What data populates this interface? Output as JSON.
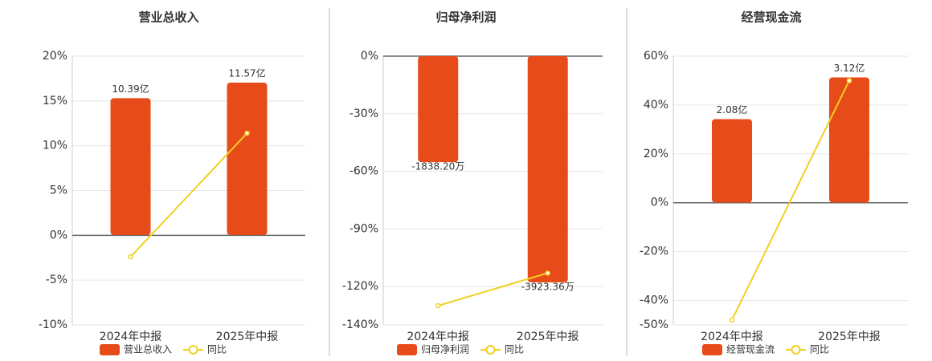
{
  "chart_data": [
    {
      "type": "combo",
      "title": "营业总收入",
      "categories": [
        "2024年中报",
        "2025年中报"
      ],
      "series": [
        {
          "name": "营业总收入",
          "type": "bar",
          "color": "#e84b1a",
          "axis": "y2",
          "values": [
            10.39,
            11.57
          ],
          "value_labels": [
            "10.39亿",
            "11.57亿"
          ]
        },
        {
          "name": "同比",
          "type": "line",
          "color": "#f0d020",
          "values": [
            -2.4,
            11.4
          ]
        }
      ],
      "ylim": [
        -10,
        20
      ],
      "yticks": [
        {
          "value": -10,
          "label": "-10%"
        },
        {
          "value": -5,
          "label": "-5%"
        },
        {
          "value": 0,
          "label": "0%"
        },
        {
          "value": 5,
          "label": "5%"
        },
        {
          "value": 10,
          "label": "10%"
        },
        {
          "value": 15,
          "label": "15%"
        },
        {
          "value": 20,
          "label": "20%"
        }
      ],
      "y2lim": [
        -6.82,
        13.58
      ],
      "grid": true
    },
    {
      "type": "combo",
      "title": "归母净利润",
      "categories": [
        "2024年中报",
        "2025年中报"
      ],
      "series": [
        {
          "name": "归母净利润",
          "type": "bar",
          "color": "#e84b1a",
          "axis": "y2",
          "values": [
            -1838.2,
            -3923.36
          ],
          "value_labels": [
            "-1838.20万",
            "-3923.36万"
          ]
        },
        {
          "name": "同比",
          "type": "line",
          "color": "#f0d020",
          "values": [
            -130,
            -113
          ]
        }
      ],
      "ylim": [
        -140,
        0
      ],
      "yticks": [
        {
          "value": -140,
          "label": "-140%"
        },
        {
          "value": -120,
          "label": "-120%"
        },
        {
          "value": -90,
          "label": "-90%"
        },
        {
          "value": -60,
          "label": "-60%"
        },
        {
          "value": -30,
          "label": "-30%"
        },
        {
          "value": 0,
          "label": "0%"
        }
      ],
      "y2lim": [
        -4660,
        0
      ],
      "grid": true
    },
    {
      "type": "combo",
      "title": "经营现金流",
      "categories": [
        "2024年中报",
        "2025年中报"
      ],
      "series": [
        {
          "name": "经营现金流",
          "type": "bar",
          "color": "#e84b1a",
          "axis": "y2",
          "values": [
            2.08,
            3.12
          ],
          "value_labels": [
            "2.08亿",
            "3.12亿"
          ]
        },
        {
          "name": "同比",
          "type": "line",
          "color": "#f0d020",
          "values": [
            -48,
            50
          ]
        }
      ],
      "ylim": [
        -50,
        60
      ],
      "yticks": [
        {
          "value": -50,
          "label": "-50%"
        },
        {
          "value": -40,
          "label": "-40%"
        },
        {
          "value": -20,
          "label": "-20%"
        },
        {
          "value": 0,
          "label": "0%"
        },
        {
          "value": 20,
          "label": "20%"
        },
        {
          "value": 40,
          "label": "40%"
        },
        {
          "value": 60,
          "label": "60%"
        }
      ],
      "y2lim": [
        -3.05,
        3.65
      ],
      "grid": true
    }
  ]
}
